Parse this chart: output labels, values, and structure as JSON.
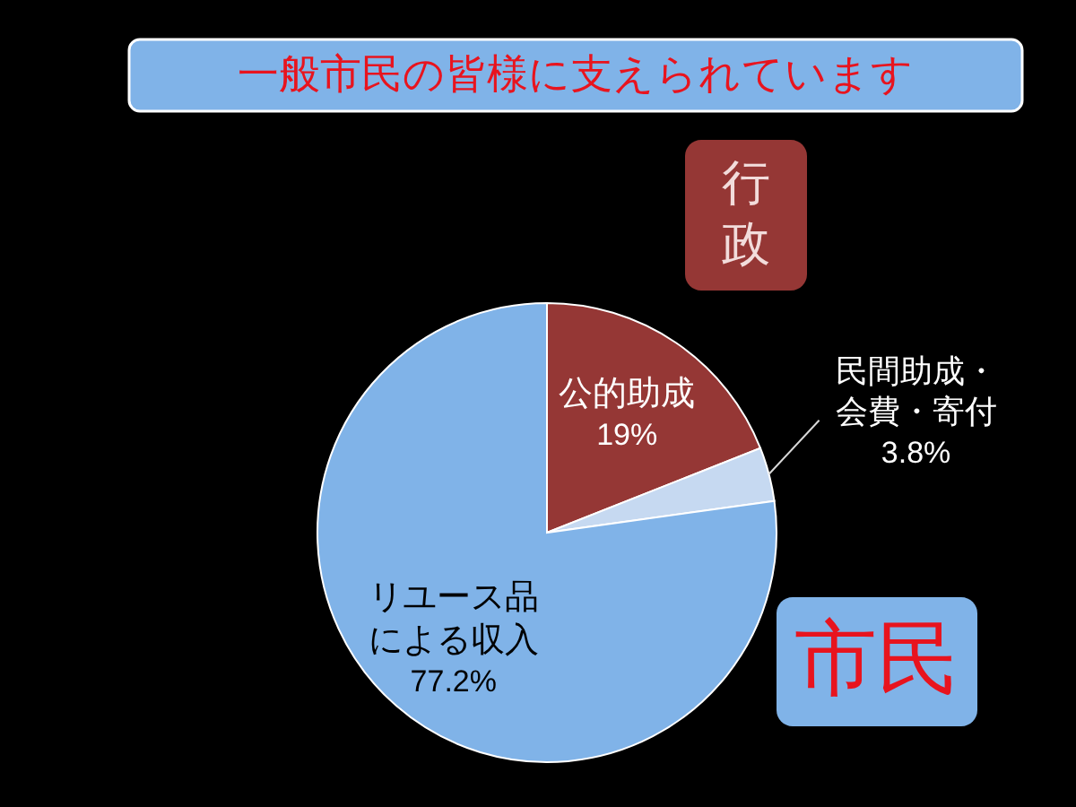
{
  "chart_data": {
    "type": "pie",
    "title": "一般市民の皆様に支えられています",
    "categories": [
      "公的助成",
      "民間助成・会費・寄付",
      "リユース品による収入"
    ],
    "values": [
      19,
      3.8,
      77.2
    ],
    "colors": [
      "#953735",
      "#c6d9f1",
      "#80b3e8"
    ],
    "value_labels": [
      "19%",
      "3.8%",
      "77.2%"
    ],
    "annotations": [
      "行政",
      "市民"
    ]
  }
}
